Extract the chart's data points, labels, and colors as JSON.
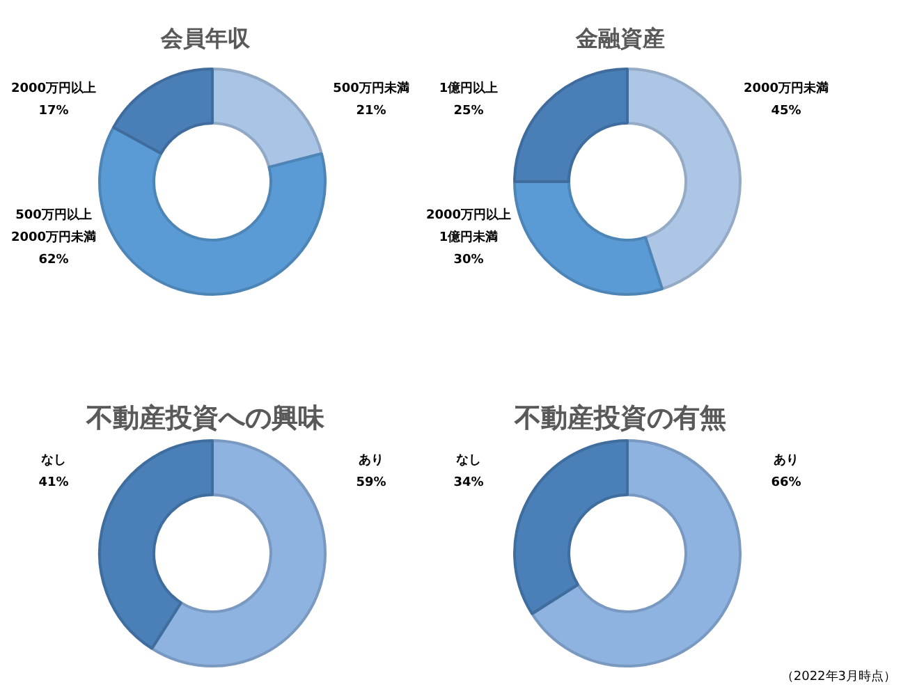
{
  "chart_data": [
    {
      "type": "donut",
      "title": "会員年収",
      "categories": [
        "500万円未満",
        "500万円以上\n2000万円未満",
        "2000万円以上"
      ],
      "values": [
        21,
        62,
        17
      ],
      "value_labels": [
        "21%",
        "62%",
        "17%"
      ],
      "colors": [
        "#a9c4e5",
        "#5b9bd5",
        "#4a7eb6"
      ]
    },
    {
      "type": "donut",
      "title": "金融資産",
      "categories": [
        "2000万円未満",
        "2000万円以上\n1億円未満",
        "1億円以上"
      ],
      "values": [
        45,
        30,
        25
      ],
      "value_labels": [
        "45%",
        "30%",
        "25%"
      ],
      "colors": [
        "#adc6e6",
        "#5b9bd5",
        "#4a7eb7"
      ]
    },
    {
      "type": "donut",
      "title": "不動産投資への興味",
      "categories": [
        "あり",
        "なし"
      ],
      "values": [
        59,
        41
      ],
      "value_labels": [
        "59%",
        "41%"
      ],
      "colors": [
        "#8fb3e0",
        "#4a7fb8"
      ]
    },
    {
      "type": "donut",
      "title": "不動産投資の有無",
      "categories": [
        "あり",
        "なし"
      ],
      "values": [
        66,
        34
      ],
      "value_labels": [
        "66%",
        "34%"
      ],
      "colors": [
        "#8fb3e0",
        "#4a7fb8"
      ],
      "annotations": [
        "（2022年3月時点）"
      ]
    }
  ]
}
